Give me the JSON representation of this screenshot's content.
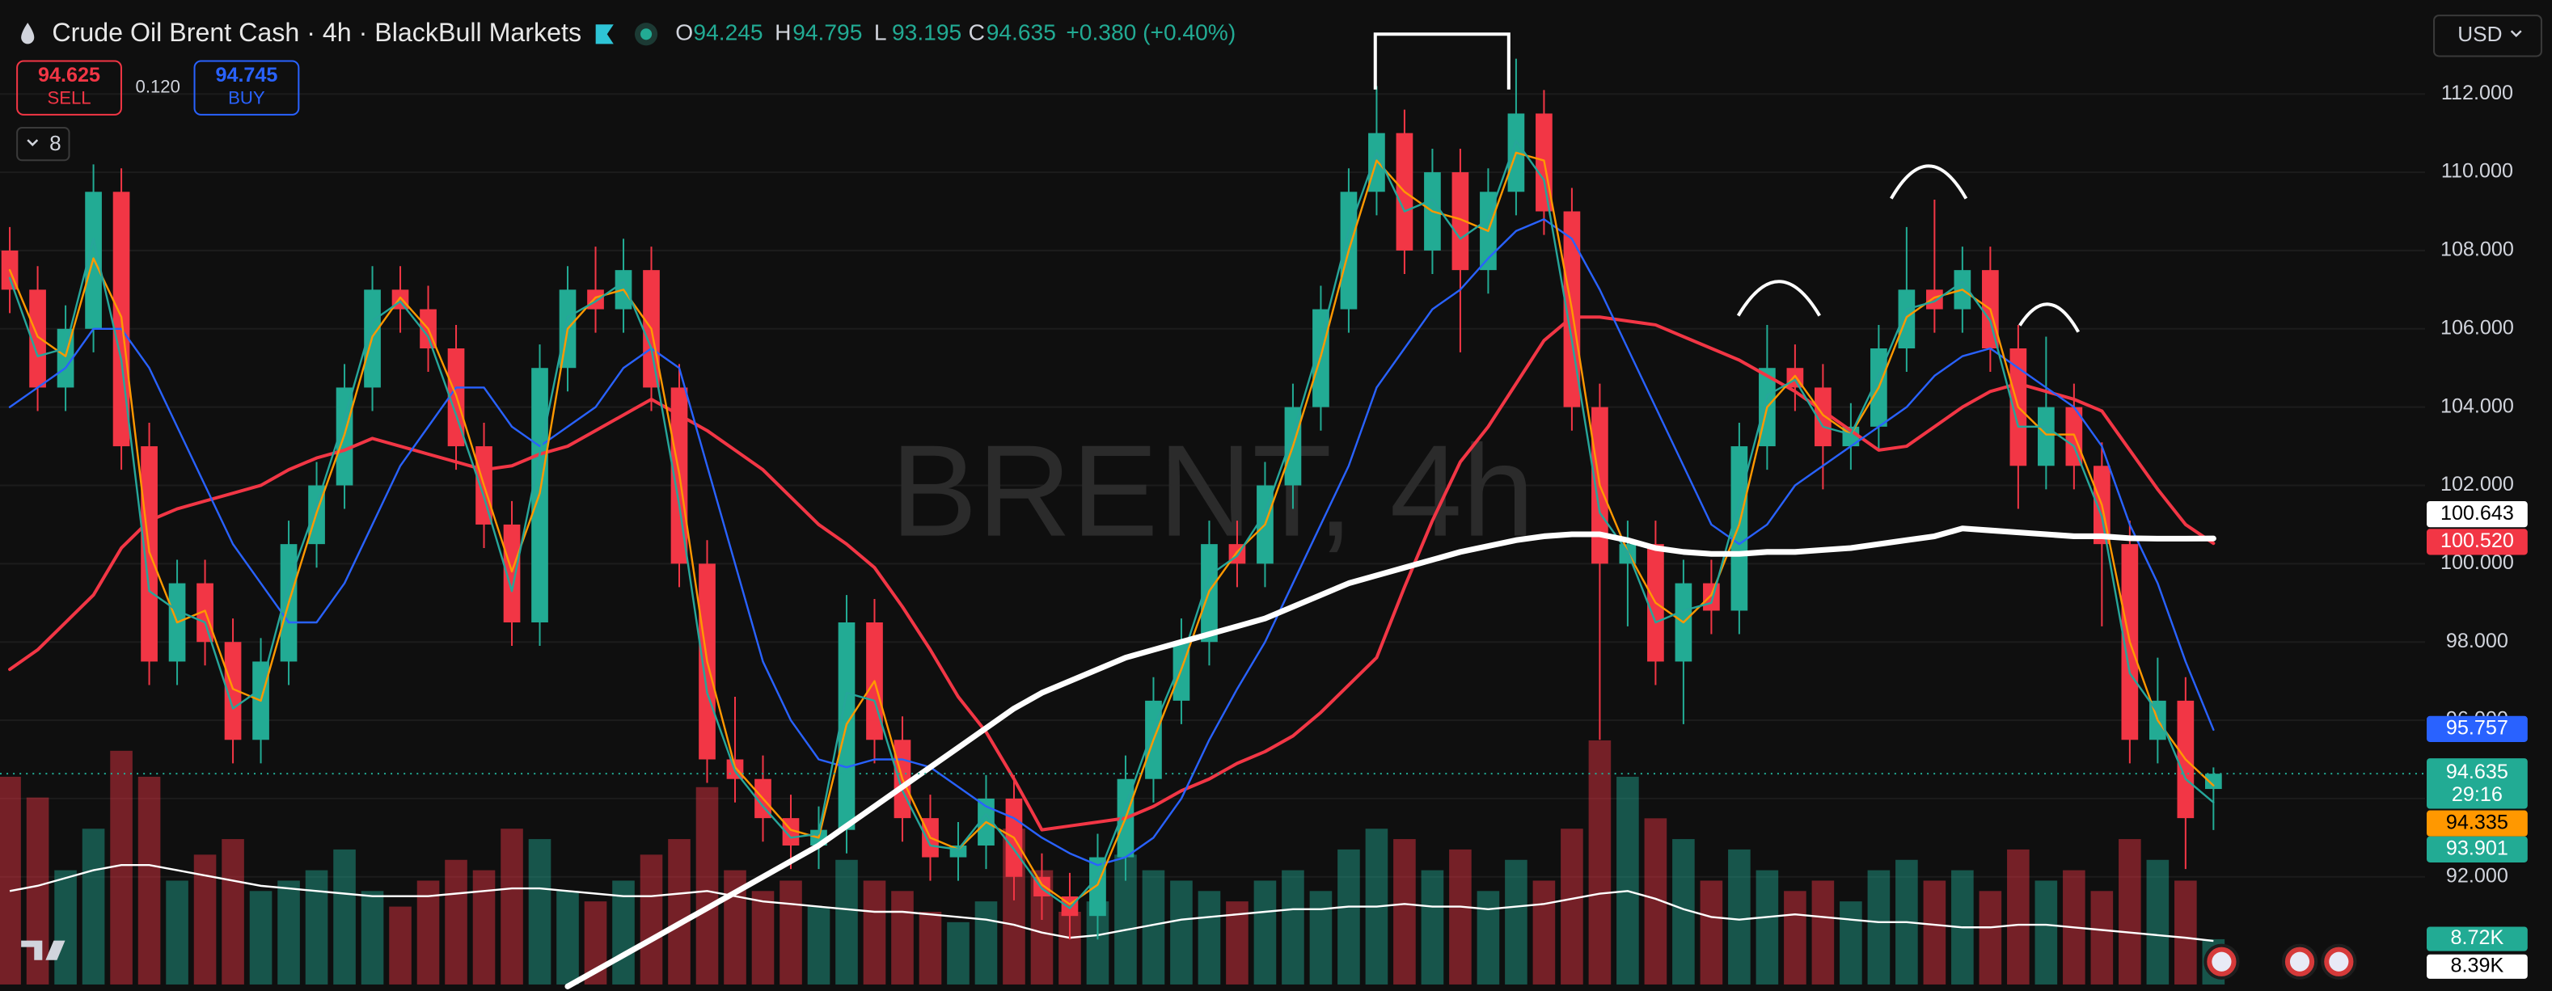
{
  "header": {
    "symbol_title": "Crude Oil Brent Cash · 4h · BlackBull Markets",
    "ohlc_letters": [
      "O",
      "H",
      "L",
      "C"
    ],
    "change": "+0.380 (+0.40%)"
  },
  "trade": {
    "sell_price": 94.625,
    "sell_label": "SELL",
    "spread": "0.120",
    "buy_price": 94.745,
    "buy_label": "BUY"
  },
  "indicators_count": "8",
  "currency": "USD",
  "chart_data": {
    "type": "candlestick",
    "watermark": "BRENT, 4h",
    "up_color": "#22ab94",
    "down_color": "#f23645",
    "volume_up_color": "rgba(34,171,148,0.45)",
    "volume_down_color": "rgba(242,54,69,0.45)",
    "ylim": [
      89.25,
      114.4
    ],
    "yticks": [
      {
        "value": 112,
        "label": "112.000"
      },
      {
        "value": 110,
        "label": "110.000"
      },
      {
        "value": 108,
        "label": "108.000"
      },
      {
        "value": 106,
        "label": "106.000"
      },
      {
        "value": 104,
        "label": "104.000"
      },
      {
        "value": 102,
        "label": "102.000"
      },
      {
        "value": 100,
        "label": "100.000"
      },
      {
        "value": 98,
        "label": "98.000"
      },
      {
        "value": 96,
        "label": "96.000"
      },
      {
        "value": 94,
        "label": "94.000"
      },
      {
        "value": 92,
        "label": "92.000"
      }
    ],
    "grid": true,
    "open": [
      108,
      107,
      104.5,
      106,
      109.5,
      103,
      97.5,
      99.5,
      98,
      95.5,
      97.5,
      100.5,
      102,
      104.5,
      107,
      106.5,
      105.5,
      103,
      101,
      98.5,
      105,
      107,
      106.5,
      107.5,
      104.5,
      100,
      95,
      94.5,
      93.5,
      92.8,
      93.2,
      98.5,
      95.5,
      93.5,
      92.5,
      92.8,
      94,
      92,
      91.5,
      91,
      92.5,
      94.5,
      96.5,
      98,
      100.5,
      100,
      102,
      104,
      106.5,
      109.5,
      111,
      108,
      110,
      107.5,
      109.5,
      111.5,
      109,
      104,
      100,
      100.5,
      97.5,
      99.5,
      98.8,
      103,
      105,
      104.5,
      103,
      103.5,
      105.5,
      107,
      106.5,
      107.5,
      105.5,
      102.5,
      104,
      102.5,
      100.5,
      95.5,
      96.5,
      94.245
    ],
    "high": [
      108.6,
      107.6,
      106.6,
      110.2,
      110.1,
      103.6,
      100.1,
      100.1,
      98.6,
      98.1,
      101.1,
      102.6,
      105.1,
      107.6,
      107.6,
      107.1,
      106.1,
      103.6,
      101.6,
      105.6,
      107.6,
      108.1,
      108.3,
      108.1,
      105.1,
      100.6,
      96.6,
      95.1,
      94.1,
      93.8,
      99.2,
      99.1,
      96.1,
      94.1,
      93.4,
      94.6,
      94.6,
      92.6,
      92.1,
      93.1,
      95.1,
      97.1,
      98.6,
      101.1,
      101.1,
      102.6,
      104.6,
      107.1,
      110.1,
      112.2,
      111.6,
      110.6,
      110.6,
      110.1,
      112.9,
      112.1,
      109.6,
      104.6,
      101.1,
      101.1,
      100.1,
      100.1,
      103.6,
      106.1,
      105.6,
      105.1,
      104.1,
      106.1,
      108.6,
      109.3,
      108.1,
      108.1,
      106.1,
      105.8,
      104.6,
      103.1,
      101.1,
      97.6,
      97.1,
      94.795
    ],
    "low": [
      106.4,
      103.9,
      103.9,
      105.4,
      102.4,
      96.9,
      96.9,
      97.4,
      94.9,
      94.9,
      96.9,
      99.9,
      101.4,
      103.9,
      105.9,
      104.9,
      102.4,
      100.4,
      97.9,
      97.9,
      104.4,
      105.9,
      105.9,
      103.9,
      99.4,
      94.4,
      93.9,
      92.9,
      92.2,
      92.2,
      92.6,
      94.9,
      92.9,
      91.9,
      91.9,
      92.2,
      91.4,
      90.9,
      90.4,
      90.4,
      91.9,
      93.9,
      95.9,
      97.4,
      99.4,
      99.4,
      101.4,
      103.4,
      105.9,
      108.9,
      107.4,
      107.4,
      105.4,
      106.9,
      108.9,
      108.4,
      103.4,
      95.5,
      98.4,
      96.9,
      95.9,
      98.2,
      98.2,
      102.4,
      103.9,
      101.9,
      102.4,
      102.9,
      104.9,
      105.9,
      105.9,
      104.9,
      101.4,
      101.9,
      101.9,
      98.4,
      94.9,
      94.9,
      92.2,
      93.195
    ],
    "close": [
      107,
      104.5,
      106,
      109.5,
      103,
      97.5,
      99.5,
      98,
      95.5,
      97.5,
      100.5,
      102,
      104.5,
      107,
      106.5,
      105.5,
      103,
      101,
      98.5,
      105,
      107,
      106.5,
      107.5,
      104.5,
      100,
      95,
      94.5,
      93.5,
      92.8,
      93.2,
      98.5,
      95.5,
      93.5,
      92.5,
      92.8,
      94,
      92,
      91.5,
      91,
      92.5,
      94.5,
      96.5,
      98,
      100.5,
      100,
      102,
      104,
      106.5,
      109.5,
      111,
      108,
      110,
      107.5,
      109.5,
      111.5,
      109,
      104,
      100,
      100.5,
      97.5,
      99.5,
      98.8,
      103,
      105,
      104.5,
      103,
      103.5,
      105.5,
      107,
      106.5,
      107.5,
      105.5,
      102.5,
      104,
      102.5,
      100.5,
      95.5,
      96.5,
      93.5,
      94.635
    ],
    "countdown": "29:16",
    "series": [
      {
        "color": "#ffffff",
        "width": 3.5,
        "end_label": "100.643",
        "values": [
          null,
          null,
          null,
          null,
          null,
          null,
          null,
          null,
          null,
          null,
          null,
          null,
          null,
          null,
          null,
          null,
          null,
          null,
          null,
          null,
          89.2,
          89.6,
          90.0,
          90.4,
          90.8,
          91.2,
          91.6,
          92.0,
          92.4,
          92.8,
          93.3,
          93.8,
          94.3,
          94.8,
          95.3,
          95.8,
          96.3,
          96.7,
          97.0,
          97.3,
          97.6,
          97.8,
          98.0,
          98.2,
          98.4,
          98.6,
          98.9,
          99.2,
          99.5,
          99.7,
          99.9,
          100.1,
          100.3,
          100.45,
          100.6,
          100.7,
          100.75,
          100.75,
          100.6,
          100.4,
          100.3,
          100.25,
          100.25,
          100.3,
          100.3,
          100.35,
          100.4,
          100.5,
          100.6,
          100.7,
          100.9,
          100.85,
          100.8,
          100.75,
          100.7,
          100.7,
          100.65,
          100.64,
          100.64,
          100.643
        ]
      },
      {
        "color": "#f23645",
        "width": 2,
        "end_label": "100.520",
        "values": [
          97.3,
          97.8,
          98.5,
          99.2,
          100.4,
          101.1,
          101.4,
          101.6,
          101.8,
          102.0,
          102.4,
          102.7,
          102.9,
          103.2,
          103.0,
          102.8,
          102.6,
          102.4,
          102.5,
          102.8,
          103.0,
          103.4,
          103.8,
          104.2,
          103.8,
          103.4,
          102.9,
          102.4,
          101.7,
          101.0,
          100.5,
          99.9,
          98.9,
          97.8,
          96.6,
          95.7,
          94.5,
          93.2,
          93.3,
          93.4,
          93.5,
          93.8,
          94.2,
          94.5,
          94.9,
          95.2,
          95.6,
          96.2,
          96.9,
          97.6,
          99.4,
          101.1,
          102.6,
          103.5,
          104.6,
          105.7,
          106.3,
          106.3,
          106.2,
          106.1,
          105.8,
          105.5,
          105.2,
          104.8,
          104.4,
          103.9,
          103.4,
          102.9,
          103.0,
          103.5,
          104.0,
          104.4,
          104.6,
          104.4,
          104.2,
          103.9,
          102.9,
          101.9,
          101.0,
          100.52
        ]
      },
      {
        "color": "#2962ff",
        "width": 1.2,
        "end_label": "95.757",
        "values": [
          104,
          104.5,
          105,
          106,
          106,
          105,
          103.5,
          102,
          100.5,
          99.5,
          98.5,
          98.5,
          99.5,
          101,
          102.5,
          103.5,
          104.5,
          104.5,
          103.5,
          103,
          103.5,
          104,
          105,
          105.5,
          105,
          102.5,
          100,
          97.5,
          96,
          95,
          94.8,
          95,
          95,
          94.8,
          94.3,
          93.8,
          93.5,
          93,
          92.6,
          92.3,
          92.5,
          93,
          94,
          95.5,
          96.8,
          98,
          99.5,
          101,
          102.5,
          104.5,
          105.5,
          106.5,
          107,
          107.8,
          108.5,
          108.8,
          108.3,
          107,
          105.5,
          104,
          102.5,
          101,
          100.5,
          101,
          102,
          102.5,
          103,
          103.5,
          104,
          104.8,
          105.3,
          105.5,
          105,
          104.5,
          104,
          103,
          101,
          99.5,
          97.5,
          95.757
        ]
      },
      {
        "color": "#ff9800",
        "width": 1.2,
        "end_label": "94.335",
        "values": [
          107.5,
          105.8,
          105.3,
          107.8,
          106.3,
          100.3,
          98.5,
          98.8,
          96.8,
          96.5,
          99,
          101.3,
          103.3,
          105.8,
          106.8,
          106,
          104.3,
          102,
          99.8,
          101.8,
          106,
          106.8,
          107,
          106,
          102.3,
          97.5,
          94.8,
          94,
          93.2,
          93,
          95.9,
          97,
          94.5,
          93,
          92.7,
          93.4,
          93,
          91.8,
          91.3,
          91.8,
          93.5,
          95.5,
          97.3,
          99.3,
          100.3,
          101,
          103,
          105.3,
          108,
          110.3,
          109.5,
          109,
          108.8,
          108.5,
          110.5,
          110.3,
          106.5,
          102,
          100.3,
          99,
          98.5,
          99.2,
          101,
          104,
          104.8,
          103.8,
          103.3,
          104.5,
          106.3,
          106.8,
          107,
          106.5,
          104,
          103.3,
          103.3,
          101.5,
          98,
          96,
          95,
          94.335
        ]
      },
      {
        "color": "#26a69a",
        "width": 1.2,
        "end_label": "93.901",
        "values": [
          107.3,
          105.3,
          105.5,
          108.3,
          105.2,
          99.3,
          98.8,
          98.5,
          96.3,
          96.8,
          99.5,
          101.5,
          103.7,
          106.2,
          106.7,
          105.8,
          103.8,
          101.7,
          99.3,
          102.8,
          106.3,
          106.7,
          107.2,
          105.5,
          101.5,
          96.7,
          94.7,
          93.8,
          93,
          93.1,
          96.7,
          96.5,
          94.2,
          92.8,
          92.7,
          93.6,
          92.7,
          91.7,
          91.2,
          92,
          93.8,
          95.8,
          97.5,
          99.7,
          100.2,
          101.3,
          103.3,
          105.7,
          108.5,
          110.5,
          109,
          109.3,
          108.3,
          108.8,
          110.8,
          109.8,
          105.7,
          101.3,
          100.3,
          98.5,
          98.8,
          99,
          101.6,
          104.3,
          104.7,
          103.5,
          103.3,
          104.8,
          106.5,
          106.7,
          107.2,
          106.2,
          103.5,
          103.5,
          103,
          101.2,
          97.2,
          96.2,
          94.5,
          93.901
        ]
      }
    ],
    "volume_ylim": [
      0,
      47000
    ],
    "volume": [
      40000,
      36000,
      22000,
      30000,
      45000,
      40000,
      20000,
      25000,
      28000,
      18000,
      20000,
      22000,
      26000,
      18000,
      15000,
      20000,
      24000,
      22000,
      30000,
      28000,
      18000,
      16000,
      20000,
      25000,
      28000,
      38000,
      22000,
      18000,
      20000,
      15000,
      24000,
      20000,
      18000,
      14000,
      12000,
      16000,
      30000,
      22000,
      14000,
      16000,
      25000,
      22000,
      20000,
      18000,
      16000,
      20000,
      22000,
      18000,
      26000,
      30000,
      28000,
      22000,
      26000,
      18000,
      24000,
      20000,
      30000,
      47000,
      40000,
      32000,
      28000,
      20000,
      26000,
      22000,
      18000,
      20000,
      16000,
      22000,
      24000,
      20000,
      22000,
      18000,
      26000,
      20000,
      22000,
      18000,
      28000,
      24000,
      20000,
      8720
    ],
    "volume_end_label": "8.72K",
    "volume_ma": {
      "color": "#ffffff",
      "end_label": "8.39K",
      "values": [
        18000,
        19000,
        20500,
        22000,
        23000,
        23000,
        22000,
        21000,
        20000,
        19000,
        18500,
        18000,
        17500,
        17000,
        17000,
        17000,
        17500,
        18000,
        18500,
        18500,
        18000,
        17500,
        17000,
        17000,
        17500,
        18000,
        17000,
        16000,
        15500,
        15000,
        14500,
        14000,
        14000,
        13500,
        13000,
        12500,
        11500,
        10000,
        9000,
        9500,
        10500,
        11500,
        12500,
        13000,
        13500,
        14000,
        14500,
        14500,
        15000,
        15000,
        15500,
        15000,
        15000,
        14500,
        15000,
        15500,
        16500,
        17500,
        18000,
        16500,
        14500,
        13000,
        12500,
        13000,
        13500,
        13000,
        12500,
        12000,
        12000,
        11500,
        11000,
        11000,
        11500,
        11500,
        11000,
        10500,
        10000,
        9500,
        9000,
        8390
      ]
    }
  }
}
